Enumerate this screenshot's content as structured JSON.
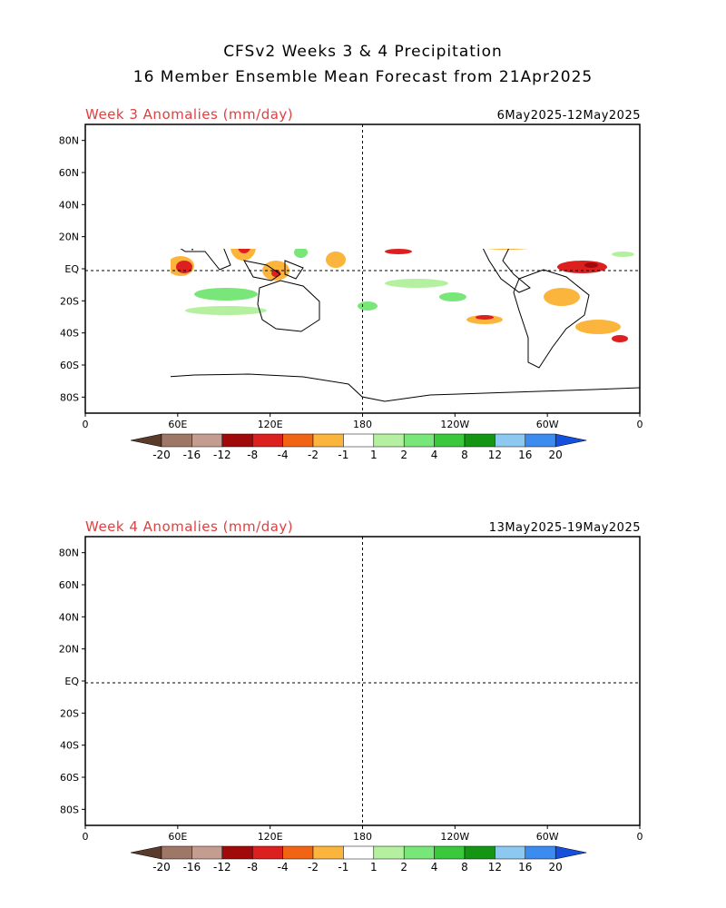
{
  "title": {
    "line1": "CFSv2 Weeks 3 & 4 Precipitation",
    "line2": "16 Member Ensemble Mean Forecast from 21Apr2025"
  },
  "panels": [
    {
      "label": "Week 3 Anomalies (mm/day)",
      "dates": "6May2025-12May2025"
    },
    {
      "label": "Week 4 Anomalies (mm/day)",
      "dates": "13May2025-19May2025"
    }
  ],
  "axes": {
    "lat_labels": [
      "80N",
      "60N",
      "40N",
      "20N",
      "EQ",
      "20S",
      "40S",
      "60S",
      "80S"
    ],
    "lon_labels": [
      "0",
      "60E",
      "120E",
      "180",
      "120W",
      "60W",
      "0"
    ]
  },
  "colorbar": {
    "labels": [
      "-20",
      "-16",
      "-12",
      "-8",
      "-4",
      "-2",
      "-1",
      "1",
      "2",
      "4",
      "8",
      "12",
      "16",
      "20"
    ],
    "colors": [
      "#5a3a2a",
      "#9e7766",
      "#c49d90",
      "#a00a0a",
      "#dc1f1f",
      "#f06414",
      "#fbb43c",
      "#ffffff",
      "#b4f0a0",
      "#78e678",
      "#3cc83c",
      "#149614",
      "#8cc8f0",
      "#3c8cf0",
      "#1450dc"
    ]
  },
  "colors": {
    "title_red": "#e04040",
    "coast": "#000000"
  }
}
